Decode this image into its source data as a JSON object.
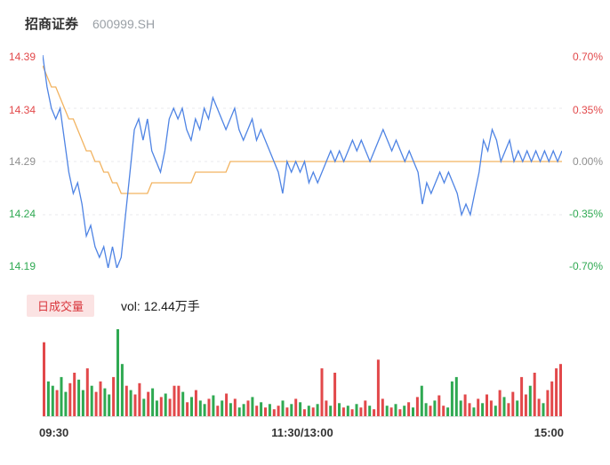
{
  "header": {
    "name": "招商证券",
    "code": "600999.SH"
  },
  "axes": {
    "price": [
      "14.39",
      "14.34",
      "14.29",
      "14.24",
      "14.19"
    ],
    "pct": [
      "0.70%",
      "0.35%",
      "0.00%",
      "-0.35%",
      "-0.70%"
    ]
  },
  "volume_panel": {
    "badge": "日成交量",
    "text": "vol: 12.44万手"
  },
  "x_axis": {
    "open": "09:30",
    "mid": "11:30/13:00",
    "close": "15:00"
  },
  "colors": {
    "up": "#e2484a",
    "down": "#2fa952",
    "price_line": "#4f84e4",
    "avg_line": "#f2b360",
    "grid": "#e8e8ec",
    "axis_mid": "#8f8f8f",
    "badge_bg": "#fbe3e3",
    "badge_text": "#d9363c"
  },
  "chart_data": {
    "type": "line",
    "title": "招商证券 600999.SH",
    "prev_close": 14.29,
    "ylim": [
      14.19,
      14.39
    ],
    "pct_range": [
      -0.7,
      0.7
    ],
    "x_ticks": [
      "09:30",
      "11:30/13:00",
      "15:00"
    ],
    "grid_levels": [
      14.34,
      14.29,
      14.24
    ],
    "legend_position": "none",
    "grid": "horizontal-dashed",
    "series": [
      {
        "name": "price",
        "color": "#4f84e4",
        "values": [
          14.39,
          14.36,
          14.34,
          14.33,
          14.34,
          14.31,
          14.28,
          14.26,
          14.27,
          14.25,
          14.22,
          14.23,
          14.21,
          14.2,
          14.21,
          14.19,
          14.21,
          14.19,
          14.2,
          14.24,
          14.28,
          14.32,
          14.33,
          14.31,
          14.33,
          14.3,
          14.29,
          14.28,
          14.3,
          14.33,
          14.34,
          14.33,
          14.34,
          14.32,
          14.31,
          14.33,
          14.32,
          14.34,
          14.33,
          14.35,
          14.34,
          14.33,
          14.32,
          14.33,
          14.34,
          14.32,
          14.31,
          14.32,
          14.33,
          14.31,
          14.32,
          14.31,
          14.3,
          14.29,
          14.28,
          14.26,
          14.29,
          14.28,
          14.29,
          14.28,
          14.29,
          14.27,
          14.28,
          14.27,
          14.28,
          14.29,
          14.3,
          14.29,
          14.3,
          14.29,
          14.3,
          14.31,
          14.3,
          14.31,
          14.3,
          14.29,
          14.3,
          14.31,
          14.32,
          14.31,
          14.3,
          14.31,
          14.3,
          14.29,
          14.3,
          14.29,
          14.28,
          14.25,
          14.27,
          14.26,
          14.27,
          14.28,
          14.27,
          14.28,
          14.27,
          14.26,
          14.24,
          14.25,
          14.24,
          14.26,
          14.28,
          14.31,
          14.3,
          14.32,
          14.31,
          14.29,
          14.3,
          14.31,
          14.29,
          14.3,
          14.29,
          14.3,
          14.29,
          14.3,
          14.29,
          14.3,
          14.29,
          14.3,
          14.29,
          14.3
        ]
      },
      {
        "name": "avg_price",
        "color": "#f2b360",
        "values": [
          14.38,
          14.37,
          14.36,
          14.36,
          14.35,
          14.34,
          14.33,
          14.33,
          14.32,
          14.31,
          14.3,
          14.3,
          14.29,
          14.29,
          14.28,
          14.28,
          14.27,
          14.27,
          14.26,
          14.26,
          14.26,
          14.26,
          14.26,
          14.26,
          14.26,
          14.27,
          14.27,
          14.27,
          14.27,
          14.27,
          14.27,
          14.27,
          14.27,
          14.27,
          14.27,
          14.28,
          14.28,
          14.28,
          14.28,
          14.28,
          14.28,
          14.28,
          14.28,
          14.29,
          14.29,
          14.29,
          14.29,
          14.29,
          14.29,
          14.29,
          14.29,
          14.29,
          14.29,
          14.29,
          14.29,
          14.29,
          14.29,
          14.29,
          14.29,
          14.29,
          14.29,
          14.29,
          14.29,
          14.29,
          14.29,
          14.29,
          14.29,
          14.29,
          14.29,
          14.29,
          14.29,
          14.29,
          14.29,
          14.29,
          14.29,
          14.29,
          14.29,
          14.29,
          14.29,
          14.29,
          14.29,
          14.29,
          14.29,
          14.29,
          14.29,
          14.29,
          14.29,
          14.29,
          14.29,
          14.29,
          14.29,
          14.29,
          14.29,
          14.29,
          14.29,
          14.29,
          14.29,
          14.29,
          14.29,
          14.29,
          14.29,
          14.29,
          14.29,
          14.29,
          14.29,
          14.29,
          14.29,
          14.29,
          14.29,
          14.29,
          14.29,
          14.29,
          14.29,
          14.29,
          14.29,
          14.29,
          14.29,
          14.29,
          14.29,
          14.29
        ]
      }
    ],
    "volume": {
      "label": "日成交量",
      "total_text": "vol: 12.44万手",
      "unit": "万手",
      "values": [
        85,
        40,
        35,
        30,
        45,
        28,
        38,
        50,
        42,
        30,
        55,
        35,
        28,
        40,
        32,
        25,
        45,
        100,
        60,
        35,
        30,
        25,
        38,
        20,
        28,
        32,
        18,
        22,
        26,
        20,
        35,
        35,
        28,
        16,
        22,
        30,
        18,
        14,
        20,
        24,
        12,
        18,
        26,
        15,
        20,
        10,
        14,
        18,
        22,
        12,
        16,
        10,
        14,
        8,
        12,
        18,
        10,
        14,
        20,
        16,
        8,
        12,
        10,
        14,
        55,
        18,
        12,
        50,
        15,
        10,
        12,
        8,
        14,
        10,
        18,
        12,
        8,
        65,
        20,
        12,
        10,
        14,
        8,
        12,
        16,
        10,
        22,
        35,
        15,
        12,
        18,
        24,
        12,
        10,
        40,
        45,
        18,
        25,
        15,
        10,
        20,
        15,
        25,
        18,
        12,
        30,
        22,
        15,
        28,
        18,
        45,
        25,
        35,
        50,
        20,
        15,
        30,
        40,
        55,
        60
      ],
      "colors": [
        "r",
        "g",
        "g",
        "r",
        "g",
        "g",
        "r",
        "r",
        "g",
        "g",
        "r",
        "g",
        "r",
        "r",
        "g",
        "g",
        "r",
        "g",
        "g",
        "r",
        "g",
        "r",
        "r",
        "g",
        "r",
        "g",
        "g",
        "r",
        "g",
        "r",
        "r",
        "r",
        "g",
        "r",
        "g",
        "r",
        "g",
        "g",
        "r",
        "g",
        "r",
        "g",
        "r",
        "g",
        "r",
        "g",
        "g",
        "r",
        "g",
        "r",
        "g",
        "r",
        "g",
        "r",
        "r",
        "g",
        "r",
        "g",
        "r",
        "g",
        "r",
        "g",
        "r",
        "g",
        "r",
        "r",
        "g",
        "r",
        "g",
        "r",
        "g",
        "r",
        "g",
        "r",
        "r",
        "g",
        "r",
        "r",
        "r",
        "g",
        "r",
        "g",
        "r",
        "g",
        "r",
        "g",
        "r",
        "g",
        "g",
        "r",
        "g",
        "r",
        "r",
        "g",
        "g",
        "g",
        "g",
        "r",
        "r",
        "g",
        "r",
        "g",
        "r",
        "r",
        "g",
        "r",
        "g",
        "r",
        "r",
        "g",
        "r",
        "r",
        "g",
        "r",
        "r",
        "g",
        "r",
        "r",
        "r",
        "r"
      ]
    }
  }
}
